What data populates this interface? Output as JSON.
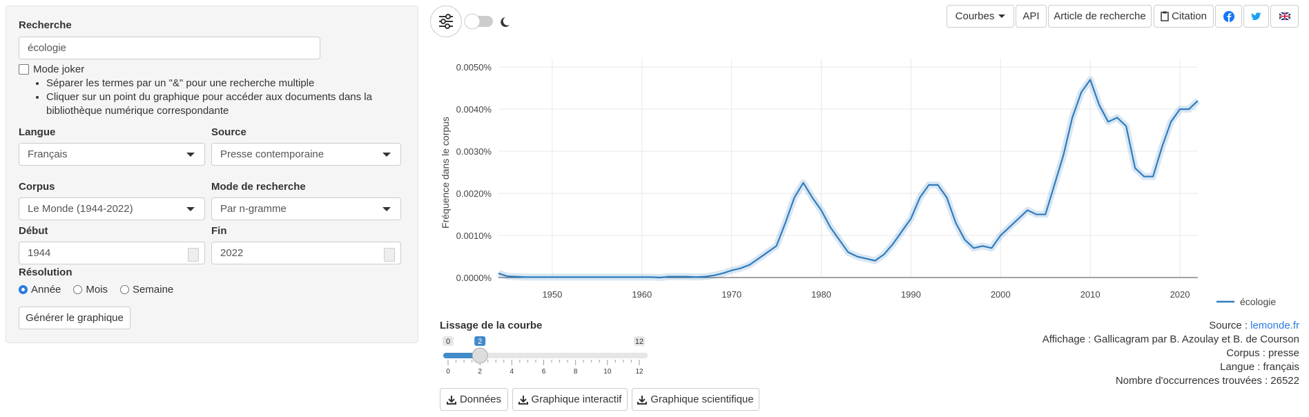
{
  "search": {
    "label": "Recherche",
    "value": "écologie",
    "joker": "Mode joker",
    "tips": [
      "Séparer les termes par un \"&\" pour une recherche multiple",
      "Cliquer sur un point du graphique pour accéder aux documents dans la bibliothèque numérique correspondante"
    ]
  },
  "fields": {
    "langue": {
      "label": "Langue",
      "value": "Français"
    },
    "source": {
      "label": "Source",
      "value": "Presse contemporaine"
    },
    "corpus": {
      "label": "Corpus",
      "value": "Le Monde (1944-2022)"
    },
    "mode": {
      "label": "Mode de recherche",
      "value": "Par n-gramme"
    },
    "debut": {
      "label": "Début",
      "value": 1944
    },
    "fin": {
      "label": "Fin",
      "value": 2022
    }
  },
  "resolution": {
    "label": "Résolution",
    "options": [
      "Année",
      "Mois",
      "Semaine"
    ]
  },
  "generate": "Générer le graphique",
  "toolbar": {
    "courbes": "Courbes",
    "api": "API",
    "article": "Article de recherche",
    "citation": "Citation"
  },
  "chart_data": {
    "type": "line",
    "y_label": "Fréquence dans le corpus",
    "x": [
      1944,
      1945,
      1946,
      1947,
      1948,
      1949,
      1950,
      1951,
      1952,
      1953,
      1954,
      1955,
      1956,
      1957,
      1958,
      1959,
      1960,
      1961,
      1962,
      1963,
      1964,
      1965,
      1966,
      1967,
      1968,
      1969,
      1970,
      1971,
      1972,
      1973,
      1974,
      1975,
      1976,
      1977,
      1978,
      1979,
      1980,
      1981,
      1982,
      1983,
      1984,
      1985,
      1986,
      1987,
      1988,
      1989,
      1990,
      1991,
      1992,
      1993,
      1994,
      1995,
      1996,
      1997,
      1998,
      1999,
      2000,
      2001,
      2002,
      2003,
      2004,
      2005,
      2006,
      2007,
      2008,
      2009,
      2010,
      2011,
      2012,
      2013,
      2014,
      2015,
      2016,
      2017,
      2018,
      2019,
      2020,
      2021,
      2022
    ],
    "series": [
      {
        "name": "écologie",
        "color": "#2f7bbd",
        "values": [
          0.0001,
          3e-05,
          2e-05,
          1e-05,
          1e-05,
          1e-05,
          1e-05,
          1e-05,
          1e-05,
          1e-05,
          1e-05,
          1e-05,
          1e-05,
          1e-05,
          1e-05,
          1e-05,
          1e-05,
          1e-05,
          0.0,
          2e-05,
          2e-05,
          2e-05,
          1e-05,
          2e-05,
          5e-05,
          0.0001,
          0.00017,
          0.00022,
          0.0003,
          0.00045,
          0.0006,
          0.00075,
          0.0013,
          0.0019,
          0.00225,
          0.0019,
          0.0016,
          0.0012,
          0.0009,
          0.0006,
          0.0005,
          0.00045,
          0.0004,
          0.00055,
          0.0008,
          0.0011,
          0.0014,
          0.0019,
          0.0022,
          0.0022,
          0.0019,
          0.0013,
          0.0009,
          0.0007,
          0.00075,
          0.0007,
          0.001,
          0.0012,
          0.0014,
          0.0016,
          0.0015,
          0.0015,
          0.0022,
          0.0029,
          0.0038,
          0.0044,
          0.0047,
          0.0041,
          0.0037,
          0.0038,
          0.0036,
          0.0026,
          0.0024,
          0.0024,
          0.0031,
          0.0037,
          0.004,
          0.004,
          0.0042
        ]
      }
    ],
    "xlim": [
      1944,
      2022
    ],
    "xticks": [
      1950,
      1960,
      1970,
      1980,
      1990,
      2000,
      2010,
      2020
    ],
    "ylim": [
      0,
      0.0052
    ],
    "yticks": [
      {
        "value": 0,
        "label": "0.0000%"
      },
      {
        "value": 0.001,
        "label": "0.0010%"
      },
      {
        "value": 0.002,
        "label": "0.0020%"
      },
      {
        "value": 0.003,
        "label": "0.0030%"
      },
      {
        "value": 0.004,
        "label": "0.0040%"
      },
      {
        "value": 0.005,
        "label": "0.0050%"
      }
    ],
    "grid": true,
    "legend": "bottom-right"
  },
  "smoothing": {
    "label": "Lissage de la courbe",
    "min": 0,
    "max": 12,
    "value": 2,
    "ticks": [
      0,
      2,
      4,
      6,
      8,
      10,
      12
    ]
  },
  "downloads": [
    "Données",
    "Graphique interactif",
    "Graphique scientifique"
  ],
  "info": [
    {
      "label": "Source :",
      "value": "lemonde.fr"
    },
    {
      "label": "Affichage :",
      "value": "Gallicagram par B. Azoulay et B. de Courson"
    },
    {
      "label": "Corpus :",
      "value": "presse"
    },
    {
      "label": "Langue :",
      "value": "français"
    },
    {
      "label": "Nombre d'occurrences trouvées :",
      "value": 26522
    }
  ]
}
